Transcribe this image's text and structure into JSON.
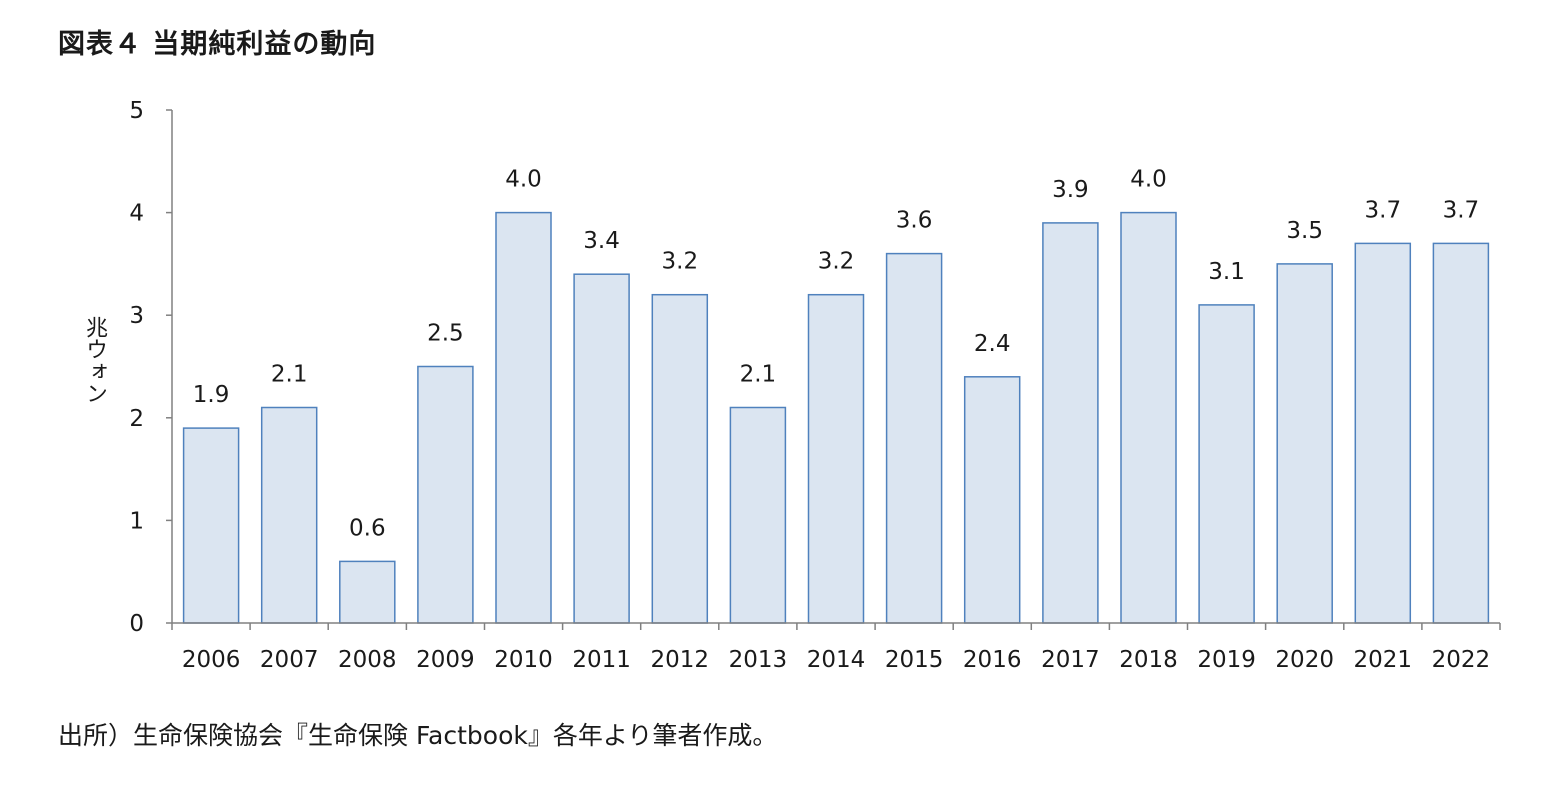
{
  "title": "図表４ 当期純利益の動向",
  "source_note": "出所）生命保険協会『生命保険 Factbook』各年より筆者作成。",
  "colors": {
    "bar_fill": "#dbe5f1",
    "bar_stroke": "#4f81bd",
    "axis": "#808080",
    "text": "#1a1a1a"
  },
  "chart_data": {
    "type": "bar",
    "title": "図表４ 当期純利益の動向",
    "xlabel": "",
    "ylabel": "兆ウォン",
    "ylim": [
      0,
      5
    ],
    "yticks": [
      "0",
      "1",
      "2",
      "3",
      "4",
      "5"
    ],
    "grid": false,
    "legend": "none",
    "categories": [
      "2006",
      "2007",
      "2008",
      "2009",
      "2010",
      "2011",
      "2012",
      "2013",
      "2014",
      "2015",
      "2016",
      "2017",
      "2018",
      "2019",
      "2020",
      "2021",
      "2022"
    ],
    "values": [
      1.9,
      2.1,
      0.6,
      2.5,
      4.0,
      3.4,
      3.2,
      2.1,
      3.2,
      3.6,
      2.4,
      3.9,
      4.0,
      3.1,
      3.5,
      3.7,
      3.7
    ],
    "data_labels": [
      "1.9",
      "2.1",
      "0.6",
      "2.5",
      "4.0",
      "3.4",
      "3.2",
      "2.1",
      "3.2",
      "3.6",
      "2.4",
      "3.9",
      "4.0",
      "3.1",
      "3.5",
      "3.7",
      "3.7"
    ]
  }
}
